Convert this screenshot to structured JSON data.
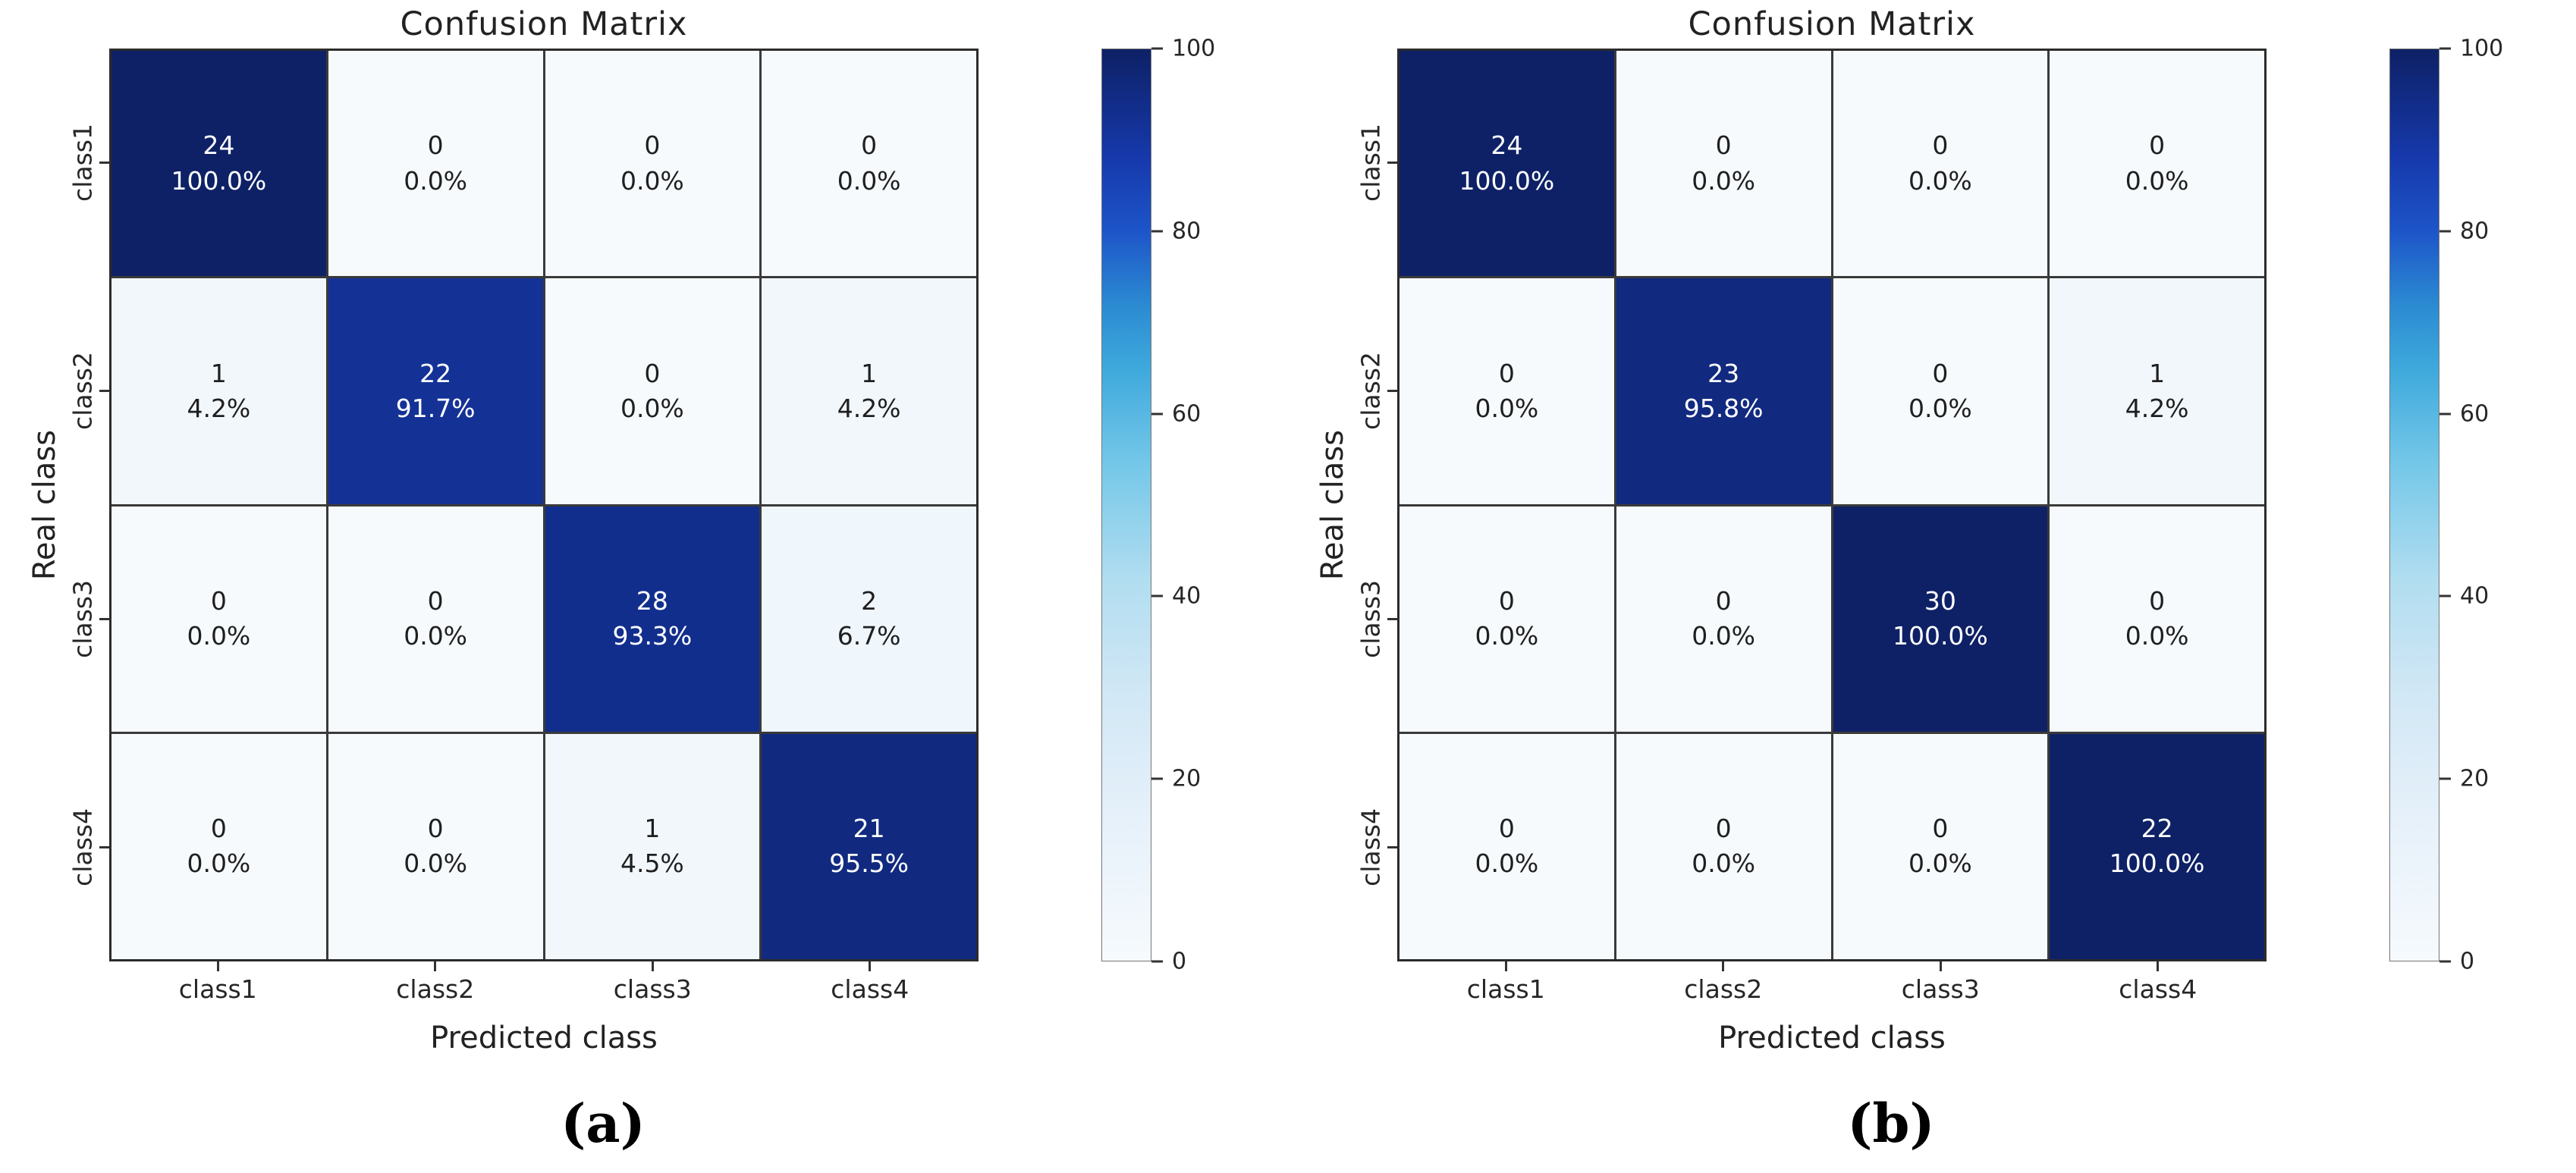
{
  "chart_data": [
    {
      "type": "heatmap",
      "title": "Confusion Matrix",
      "xlabel": "Predicted class",
      "ylabel": "Real class",
      "x_categories": [
        "class1",
        "class2",
        "class3",
        "class4"
      ],
      "y_categories": [
        "class1",
        "class2",
        "class3",
        "class4"
      ],
      "counts": [
        [
          24,
          0,
          0,
          0
        ],
        [
          1,
          22,
          0,
          1
        ],
        [
          0,
          0,
          28,
          2
        ],
        [
          0,
          0,
          1,
          21
        ]
      ],
      "percents": [
        [
          100.0,
          0.0,
          0.0,
          0.0
        ],
        [
          4.2,
          91.7,
          0.0,
          4.2
        ],
        [
          0.0,
          0.0,
          93.3,
          6.7
        ],
        [
          0.0,
          0.0,
          4.5,
          95.5
        ]
      ],
      "colorbar": {
        "min": 0,
        "max": 100,
        "ticks": [
          0,
          20,
          40,
          60,
          80,
          100
        ]
      },
      "caption": "(a)"
    },
    {
      "type": "heatmap",
      "title": "Confusion Matrix",
      "xlabel": "Predicted class",
      "ylabel": "Real class",
      "x_categories": [
        "class1",
        "class2",
        "class3",
        "class4"
      ],
      "y_categories": [
        "class1",
        "class2",
        "class3",
        "class4"
      ],
      "counts": [
        [
          24,
          0,
          0,
          0
        ],
        [
          0,
          23,
          0,
          1
        ],
        [
          0,
          0,
          30,
          0
        ],
        [
          0,
          0,
          0,
          22
        ]
      ],
      "percents": [
        [
          100.0,
          0.0,
          0.0,
          0.0
        ],
        [
          0.0,
          95.8,
          0.0,
          4.2
        ],
        [
          0.0,
          0.0,
          100.0,
          0.0
        ],
        [
          0.0,
          0.0,
          0.0,
          100.0
        ]
      ],
      "colorbar": {
        "min": 0,
        "max": 100,
        "ticks": [
          0,
          20,
          40,
          60,
          80,
          100
        ]
      },
      "caption": "(b)"
    }
  ],
  "style": {
    "colormap_stops": [
      {
        "t": 0.0,
        "c": "#f6fafd"
      },
      {
        "t": 0.15,
        "c": "#e7f1fa"
      },
      {
        "t": 0.3,
        "c": "#d0e7f5"
      },
      {
        "t": 0.42,
        "c": "#b0ddf0"
      },
      {
        "t": 0.55,
        "c": "#72c6e8"
      },
      {
        "t": 0.65,
        "c": "#3ea9dc"
      },
      {
        "t": 0.72,
        "c": "#2b8ad2"
      },
      {
        "t": 0.8,
        "c": "#1d55c8"
      },
      {
        "t": 0.88,
        "c": "#1639ac"
      },
      {
        "t": 1.0,
        "c": "#0e2166"
      }
    ],
    "cell_text_light": "#ffffff",
    "cell_text_dark": "#1f1f1f",
    "text_threshold": 50
  }
}
